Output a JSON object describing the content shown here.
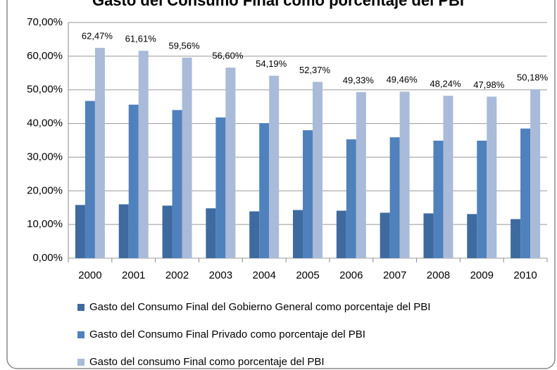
{
  "chart_data": {
    "type": "bar",
    "title": "Gasto del Consumo Final como porcentaje del PBI",
    "categories": [
      "2000",
      "2001",
      "2002",
      "2003",
      "2004",
      "2005",
      "2006",
      "2007",
      "2008",
      "2009",
      "2010"
    ],
    "series": [
      {
        "name": "Gasto del Consumo Final del Gobierno General como porcentaje del PBI",
        "color": "#3e6aa0",
        "values": [
          15.8,
          16.0,
          15.6,
          14.8,
          13.9,
          14.3,
          14.1,
          13.5,
          13.3,
          13.1,
          11.6
        ]
      },
      {
        "name": "Gasto del Consumo Final Privado como porcentaje del PBI",
        "color": "#4f81bd",
        "values": [
          46.7,
          45.6,
          44.0,
          41.8,
          40.1,
          38.0,
          35.3,
          35.9,
          34.9,
          34.9,
          38.5
        ]
      },
      {
        "name": "Gasto del consumo Final como porcentaje del PBI",
        "color": "#a9bbd9",
        "values": [
          62.47,
          61.61,
          59.56,
          56.6,
          54.19,
          52.37,
          49.33,
          49.46,
          48.24,
          47.98,
          50.18
        ],
        "value_labels": [
          "62,47%",
          "61,61%",
          "59,56%",
          "56,60%",
          "54,19%",
          "52,37%",
          "49,33%",
          "49,46%",
          "48,24%",
          "47,98%",
          "50,18%"
        ]
      }
    ],
    "ylim": [
      0,
      70
    ],
    "yticks": [
      {
        "value": 0,
        "label": "0,00%"
      },
      {
        "value": 10,
        "label": "10,00%"
      },
      {
        "value": 20,
        "label": "20,00%"
      },
      {
        "value": 30,
        "label": "30,00%"
      },
      {
        "value": 40,
        "label": "40,00%"
      },
      {
        "value": 50,
        "label": "50,00%"
      },
      {
        "value": 60,
        "label": "60,00%"
      },
      {
        "value": 70,
        "label": "70,00%"
      }
    ],
    "grid": true,
    "legend": "bottom"
  }
}
